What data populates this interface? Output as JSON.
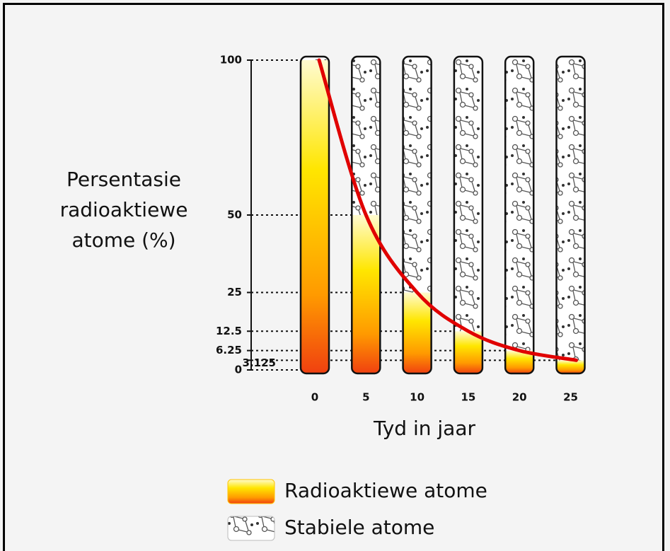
{
  "chart_data": {
    "type": "bar",
    "stacked": true,
    "y_label": "Persentasie radioaktiewe atome (%)",
    "x_label": "Tyd in jaar",
    "categories": [
      "0",
      "5",
      "10",
      "15",
      "20",
      "25"
    ],
    "series": [
      {
        "name": "Radioaktiewe atome",
        "color": "#ffc400",
        "values": [
          100,
          50,
          25,
          12.5,
          6.25,
          3.125
        ]
      },
      {
        "name": "Stabiele atome",
        "color": "#ffffff",
        "values": [
          0,
          50,
          75,
          87.5,
          93.75,
          96.875
        ]
      }
    ],
    "curve_color": "#e00000",
    "ylim": [
      0,
      100
    ],
    "yticks": [
      0,
      3.125,
      6.25,
      12.5,
      25,
      50,
      100
    ],
    "grid": true
  }
}
